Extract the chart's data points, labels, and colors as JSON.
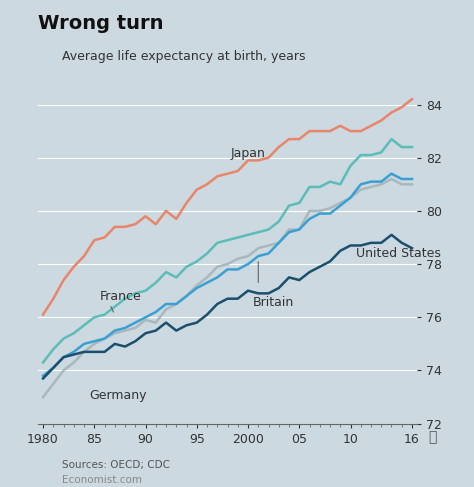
{
  "title": "Wrong turn",
  "subtitle": "Average life expectancy at birth, years",
  "source": "Sources: OECD; CDC",
  "credit": "Economist.com",
  "background_color": "#ccd9e0",
  "plot_bg_color": "#ccd9e0",
  "years": [
    1980,
    1981,
    1982,
    1983,
    1984,
    1985,
    1986,
    1987,
    1988,
    1989,
    1990,
    1991,
    1992,
    1993,
    1994,
    1995,
    1996,
    1997,
    1998,
    1999,
    2000,
    2001,
    2002,
    2003,
    2004,
    2005,
    2006,
    2007,
    2008,
    2009,
    2010,
    2011,
    2012,
    2013,
    2014,
    2015,
    2016
  ],
  "japan": [
    76.1,
    76.7,
    77.4,
    77.9,
    78.3,
    78.9,
    79.0,
    79.4,
    79.4,
    79.5,
    79.8,
    79.5,
    80.0,
    79.7,
    80.3,
    80.8,
    81.0,
    81.3,
    81.4,
    81.5,
    81.9,
    81.9,
    82.0,
    82.4,
    82.7,
    82.7,
    83.0,
    83.0,
    83.0,
    83.2,
    83.0,
    83.0,
    83.2,
    83.4,
    83.7,
    83.9,
    84.2
  ],
  "france": [
    74.3,
    74.8,
    75.2,
    75.4,
    75.7,
    76.0,
    76.1,
    76.4,
    76.7,
    76.9,
    77.0,
    77.3,
    77.7,
    77.5,
    77.9,
    78.1,
    78.4,
    78.8,
    78.9,
    79.0,
    79.1,
    79.2,
    79.3,
    79.6,
    80.2,
    80.3,
    80.9,
    80.9,
    81.1,
    81.0,
    81.7,
    82.1,
    82.1,
    82.2,
    82.7,
    82.4,
    82.4
  ],
  "germany": [
    73.0,
    73.5,
    74.0,
    74.3,
    74.7,
    75.0,
    75.2,
    75.4,
    75.5,
    75.6,
    75.9,
    75.8,
    76.3,
    76.5,
    76.8,
    77.2,
    77.5,
    77.9,
    78.0,
    78.2,
    78.3,
    78.6,
    78.7,
    78.8,
    79.3,
    79.3,
    80.0,
    80.0,
    80.1,
    80.3,
    80.5,
    80.8,
    80.9,
    81.0,
    81.2,
    81.0,
    81.0
  ],
  "britain": [
    73.8,
    74.1,
    74.5,
    74.7,
    75.0,
    75.1,
    75.2,
    75.5,
    75.6,
    75.8,
    76.0,
    76.2,
    76.5,
    76.5,
    76.8,
    77.1,
    77.3,
    77.5,
    77.8,
    77.8,
    78.0,
    78.3,
    78.4,
    78.8,
    79.2,
    79.3,
    79.7,
    79.9,
    79.9,
    80.2,
    80.5,
    81.0,
    81.1,
    81.1,
    81.4,
    81.2,
    81.2
  ],
  "us": [
    73.7,
    74.1,
    74.5,
    74.6,
    74.7,
    74.7,
    74.7,
    75.0,
    74.9,
    75.1,
    75.4,
    75.5,
    75.8,
    75.5,
    75.7,
    75.8,
    76.1,
    76.5,
    76.7,
    76.7,
    77.0,
    76.9,
    76.9,
    77.1,
    77.5,
    77.4,
    77.7,
    77.9,
    78.1,
    78.5,
    78.7,
    78.7,
    78.8,
    78.8,
    79.1,
    78.8,
    78.6
  ],
  "colors": {
    "japan": "#e8856a",
    "france": "#5bbcb8",
    "germany": "#a8b8bc",
    "britain": "#3b9fd4",
    "us": "#1a4f6e"
  },
  "ylim": [
    72,
    85
  ],
  "yticks": [
    72,
    74,
    76,
    78,
    80,
    82,
    84
  ],
  "xtick_labels": [
    "1980",
    "85",
    "90",
    "95",
    "2000",
    "05",
    "10",
    "16"
  ],
  "xtick_positions": [
    1980,
    1985,
    1990,
    1995,
    2000,
    2005,
    2010,
    2016
  ]
}
